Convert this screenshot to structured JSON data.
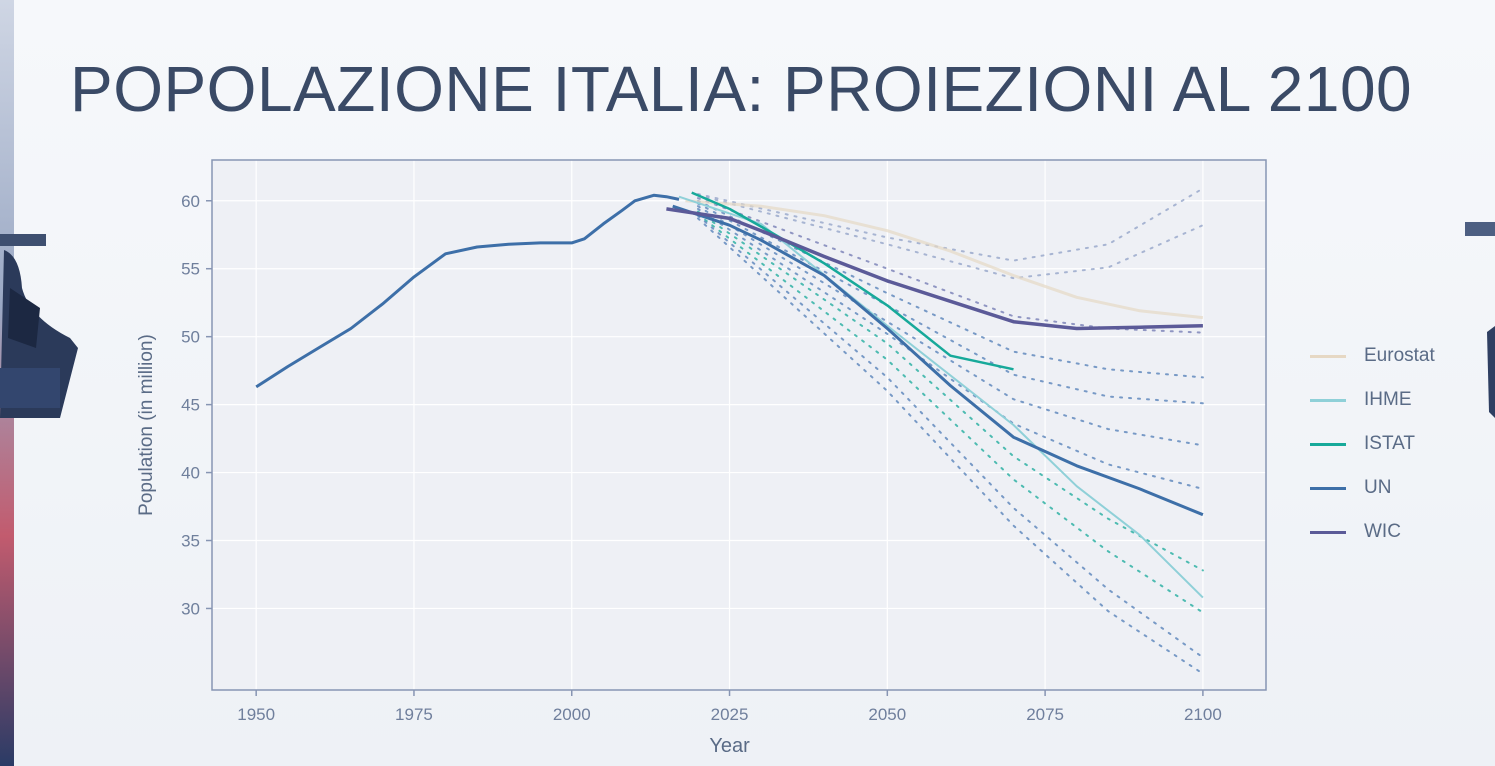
{
  "slide": {
    "title": "POPOLAZIONE ITALIA: PROIEZIONI AL 2100"
  },
  "colors": {
    "background": "#f3f5f9",
    "plot_background": "#eef0f5",
    "panel_border": "#8795b3",
    "tick_text": "#6f7f9c",
    "Eurostat": "#e6d8c4",
    "IHME": "#8fd0d8",
    "ISTAT": "#17a99a",
    "UN": "#3d6fa8",
    "WIC": "#5b5a98"
  },
  "chart_data": {
    "type": "line",
    "title": "",
    "xlabel": "Year",
    "ylabel": "Population (in million)",
    "xlim": [
      1943,
      2110
    ],
    "ylim": [
      24,
      63
    ],
    "x_ticks": [
      1950,
      1975,
      2000,
      2025,
      2050,
      2075,
      2100
    ],
    "y_ticks": [
      30,
      35,
      40,
      45,
      50,
      55,
      60
    ],
    "grid": true,
    "legend_position": "right",
    "legend": [
      "Eurostat",
      "IHME",
      "ISTAT",
      "UN",
      "WIC"
    ],
    "historical": {
      "x": [
        1950,
        1955,
        1960,
        1965,
        1970,
        1975,
        1980,
        1985,
        1990,
        1995,
        2000,
        2002,
        2005,
        2008,
        2010,
        2013,
        2015,
        2017
      ],
      "y": [
        46.3,
        47.8,
        49.2,
        50.6,
        52.4,
        54.4,
        56.1,
        56.6,
        56.8,
        56.9,
        56.9,
        57.2,
        58.3,
        59.3,
        60.0,
        60.4,
        60.3,
        60.1
      ]
    },
    "series": [
      {
        "name": "Eurostat",
        "x": [
          2018,
          2030,
          2040,
          2050,
          2060,
          2070,
          2080,
          2090,
          2100
        ],
        "y": [
          60.0,
          59.6,
          58.9,
          57.8,
          56.3,
          54.5,
          52.9,
          51.9,
          51.4
        ]
      },
      {
        "name": "IHME",
        "x": [
          2017,
          2030,
          2050,
          2070,
          2080,
          2090,
          2100
        ],
        "y": [
          60.3,
          58.3,
          50.8,
          43.5,
          39.0,
          35.4,
          30.8
        ]
      },
      {
        "name": "ISTAT",
        "x": [
          2019,
          2025,
          2030,
          2040,
          2050,
          2060,
          2070
        ],
        "y": [
          60.6,
          59.4,
          58.1,
          55.4,
          52.3,
          48.6,
          47.6
        ]
      },
      {
        "name": "UN",
        "x": [
          2016,
          2025,
          2030,
          2040,
          2050,
          2060,
          2070,
          2080,
          2090,
          2100
        ],
        "y": [
          59.6,
          58.2,
          57.1,
          54.5,
          50.6,
          46.4,
          42.6,
          40.5,
          38.8,
          36.9
        ]
      },
      {
        "name": "WIC",
        "x": [
          2015,
          2025,
          2030,
          2040,
          2050,
          2060,
          2070,
          2080,
          2090,
          2100
        ],
        "y": [
          59.4,
          58.7,
          57.8,
          55.9,
          54.1,
          52.6,
          51.1,
          50.6,
          50.7,
          50.8
        ]
      }
    ],
    "uncertainty_dotted": [
      {
        "color": "#8fa0c6",
        "x": [
          2020,
          2050,
          2070,
          2085,
          2100
        ],
        "y": [
          60.5,
          57.3,
          55.6,
          56.8,
          60.9
        ]
      },
      {
        "color": "#8fa0c6",
        "x": [
          2020,
          2050,
          2070,
          2085,
          2100
        ],
        "y": [
          60.4,
          56.8,
          54.3,
          55.1,
          58.2
        ]
      },
      {
        "color": "#6f77b0",
        "x": [
          2020,
          2050,
          2070,
          2085,
          2100
        ],
        "y": [
          60.2,
          55.0,
          51.5,
          50.6,
          50.3
        ]
      },
      {
        "color": "#4f7cb5",
        "x": [
          2020,
          2050,
          2070,
          2085,
          2100
        ],
        "y": [
          60.0,
          53.2,
          48.9,
          47.6,
          47.0
        ]
      },
      {
        "color": "#4f7cb5",
        "x": [
          2020,
          2050,
          2070,
          2085,
          2100
        ],
        "y": [
          59.8,
          52.3,
          47.2,
          45.6,
          45.1
        ]
      },
      {
        "color": "#4f7cb5",
        "x": [
          2020,
          2050,
          2070,
          2085,
          2100
        ],
        "y": [
          59.6,
          51.1,
          45.4,
          43.2,
          42.0
        ]
      },
      {
        "color": "#4f7cb5",
        "x": [
          2020,
          2050,
          2070,
          2085,
          2100
        ],
        "y": [
          59.4,
          50.2,
          43.6,
          40.6,
          38.8
        ]
      },
      {
        "color": "#17a99a",
        "x": [
          2020,
          2050,
          2070,
          2085,
          2100
        ],
        "y": [
          59.2,
          49.5,
          41.2,
          36.6,
          32.8
        ]
      },
      {
        "color": "#17a99a",
        "x": [
          2020,
          2050,
          2070,
          2085,
          2100
        ],
        "y": [
          59.0,
          48.3,
          39.5,
          34.2,
          29.7
        ]
      },
      {
        "color": "#4f7cb5",
        "x": [
          2020,
          2050,
          2070,
          2085,
          2100
        ],
        "y": [
          58.9,
          47.0,
          37.4,
          31.4,
          26.4
        ]
      },
      {
        "color": "#4f7cb5",
        "x": [
          2020,
          2050,
          2070,
          2085,
          2100
        ],
        "y": [
          58.7,
          46.0,
          36.1,
          29.8,
          25.2
        ]
      }
    ]
  }
}
